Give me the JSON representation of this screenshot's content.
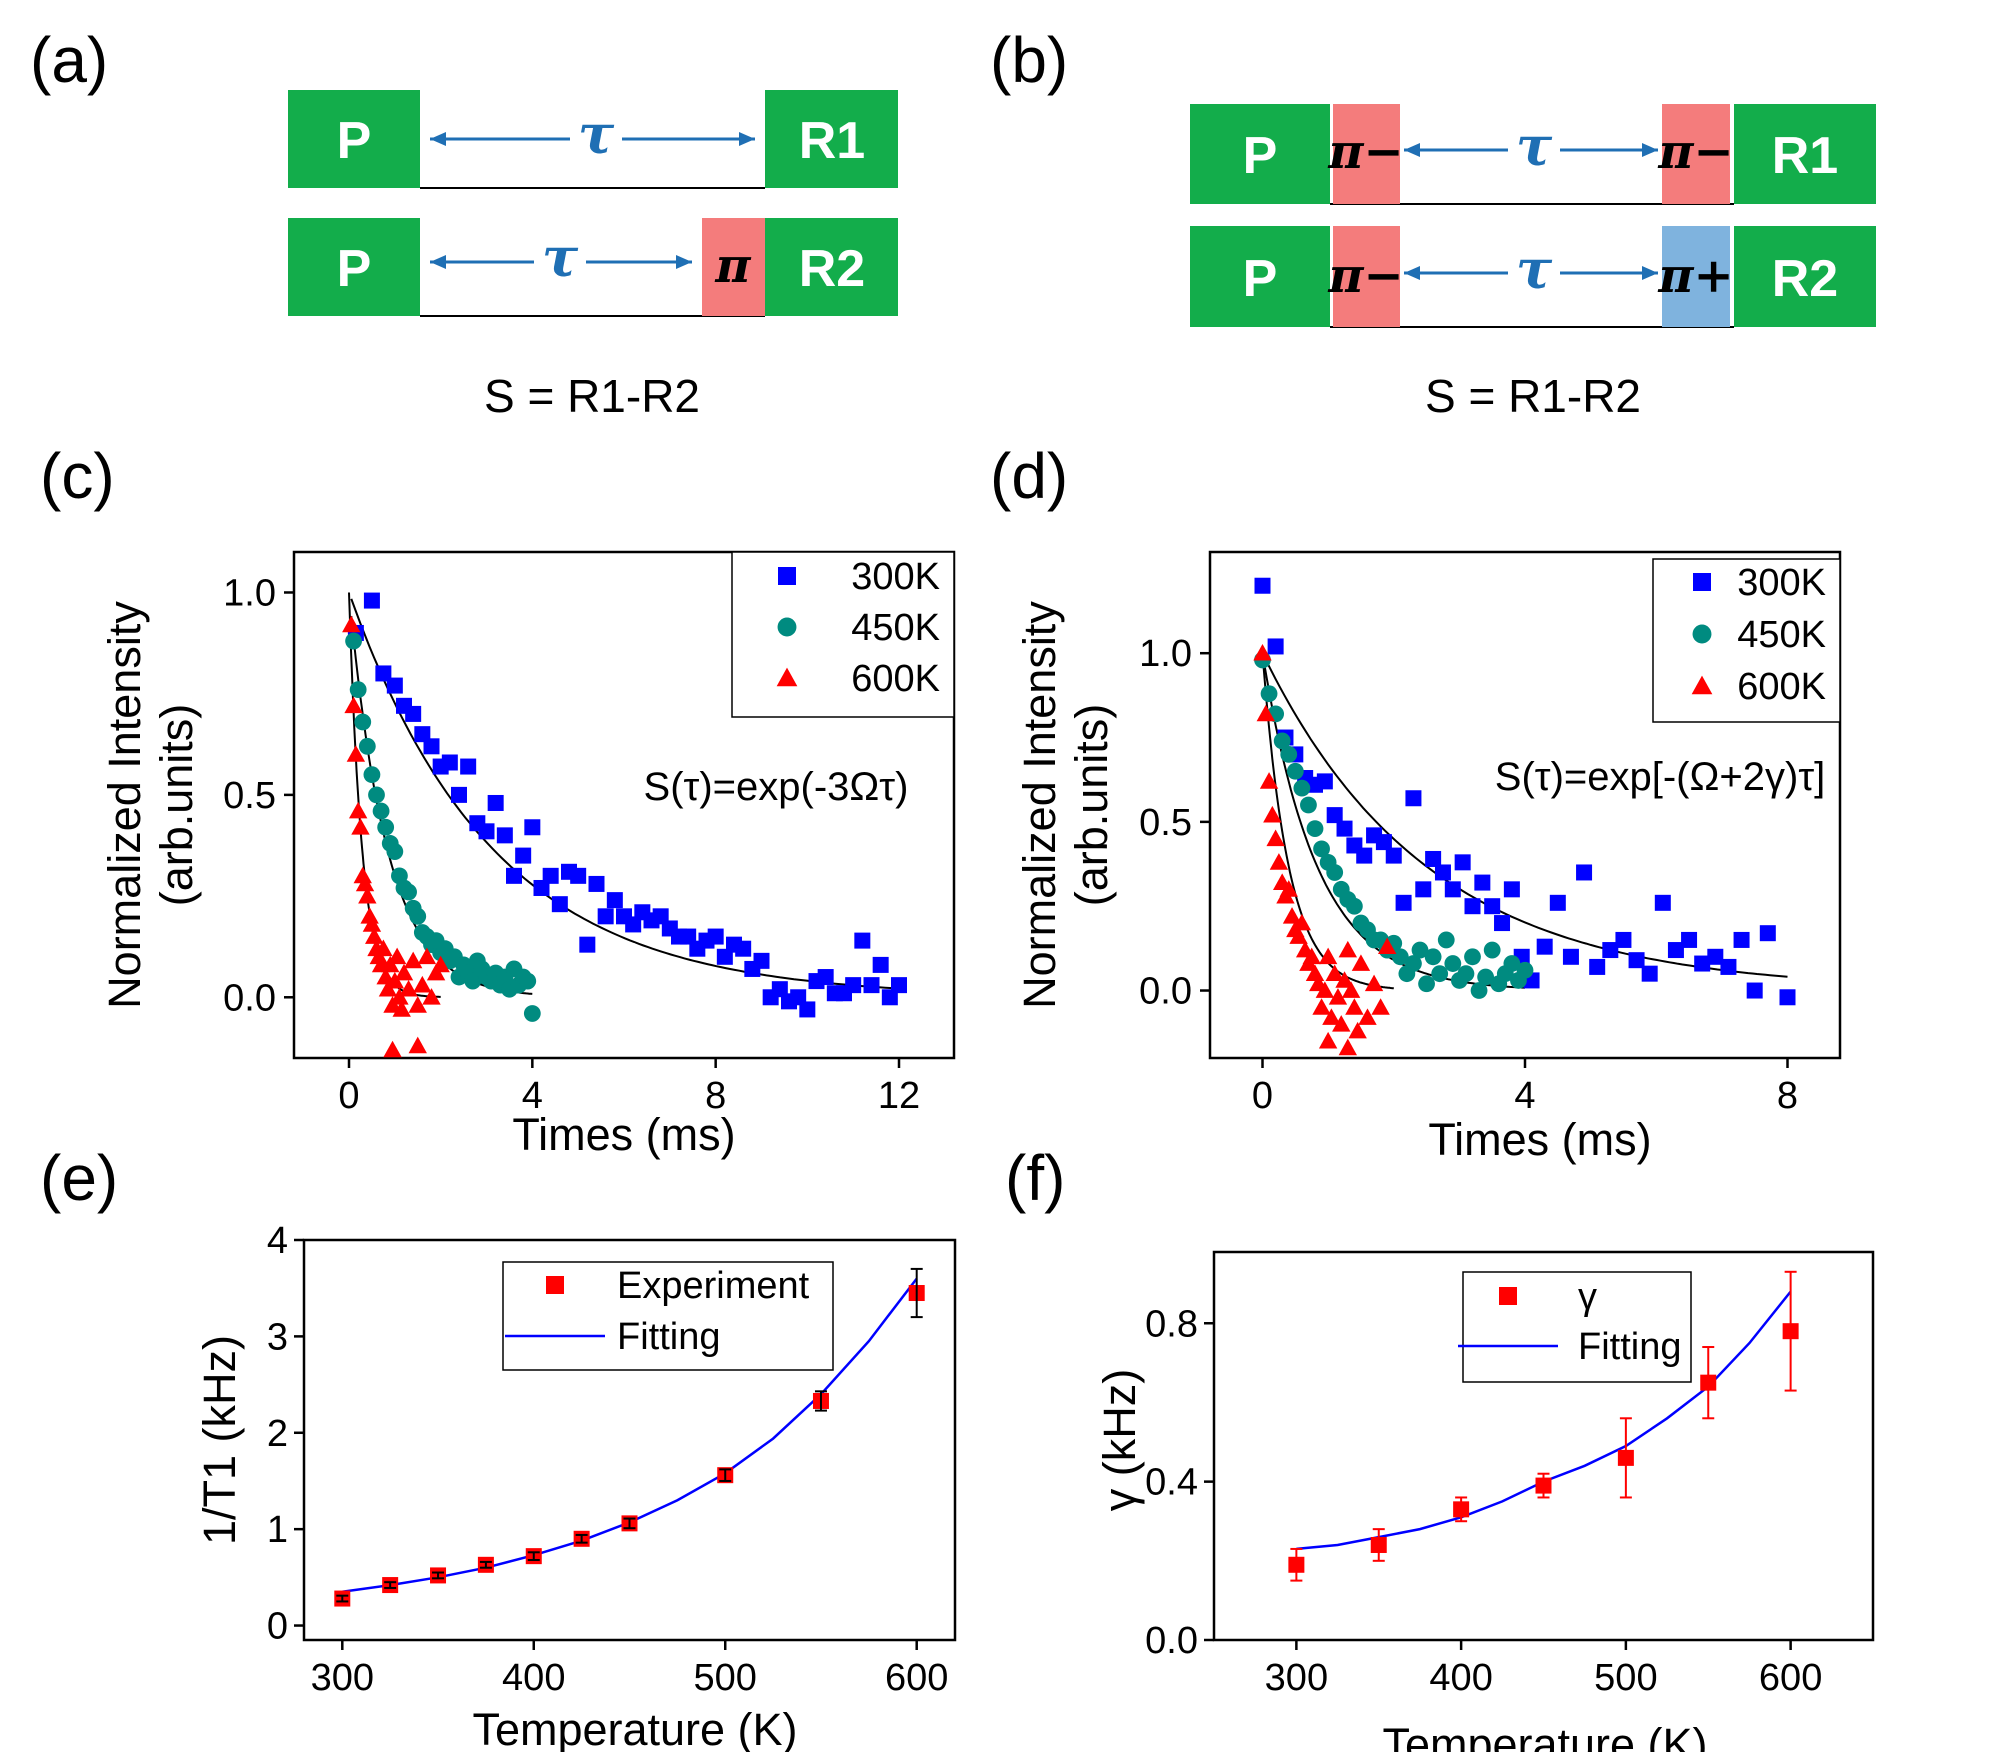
{
  "figure": {
    "panels": {
      "a": {
        "label": "(a)",
        "formula": "S = R1-R2"
      },
      "b": {
        "label": "(b)",
        "formula": "S = R1-R2"
      },
      "c": {
        "label": "(c)"
      },
      "d": {
        "label": "(d)"
      },
      "e": {
        "label": "(e)"
      },
      "f": {
        "label": "(f)"
      }
    },
    "sequences": {
      "a": {
        "row1": {
          "pump": "P",
          "interval": "τ",
          "readout": "R1"
        },
        "row2": {
          "pump": "P",
          "interval": "τ",
          "pulse": "π",
          "readout": "R2"
        }
      },
      "b": {
        "row1": {
          "pump": "P",
          "pulse1": "π−",
          "interval": "τ",
          "pulse2": "π−",
          "readout": "R1"
        },
        "row2": {
          "pump": "P",
          "pulse1": "π−",
          "interval": "τ",
          "pulse2": "π+",
          "readout": "R2"
        }
      }
    },
    "colors": {
      "green": "#13ad4b",
      "pink": "#f47c7c",
      "light_blue": "#7fb3de",
      "arrow_blue": "#1f6fb4",
      "series_blue": "#0000ff",
      "series_teal": "#008b80",
      "series_red": "#ff0000",
      "fit_line": "#0000ff"
    }
  },
  "chart_data": [
    {
      "id": "c",
      "type": "scatter",
      "xlabel": "Times (ms)",
      "ylabel": "Normalized Intensity (arb.units)",
      "xlim": [
        -1.2,
        13.2
      ],
      "ylim": [
        -0.15,
        1.1
      ],
      "xticks": [
        "0",
        "4",
        "8",
        "12"
      ],
      "yticks": [
        "0.0",
        "0.5",
        "1.0"
      ],
      "annotation": "S(τ)=exp(-3Ωτ)",
      "legend": [
        "300K",
        "450K",
        "600K"
      ],
      "series": [
        {
          "name": "300K",
          "marker": "square",
          "color": "#0000ff",
          "x": [
            0.15,
            0.5,
            0.75,
            1.0,
            1.2,
            1.4,
            1.6,
            1.8,
            2.0,
            2.2,
            2.4,
            2.6,
            2.8,
            3.0,
            3.2,
            3.4,
            3.6,
            3.8,
            4.0,
            4.2,
            4.4,
            4.6,
            4.8,
            5.0,
            5.2,
            5.4,
            5.6,
            5.8,
            6.0,
            6.2,
            6.4,
            6.6,
            6.8,
            7.0,
            7.2,
            7.4,
            7.6,
            7.8,
            8.0,
            8.2,
            8.4,
            8.6,
            8.8,
            9.0,
            9.2,
            9.4,
            9.6,
            9.8,
            10.0,
            10.2,
            10.4,
            10.6,
            10.8,
            11.0,
            11.2,
            11.4,
            11.6,
            11.8,
            12.0
          ],
          "y": [
            0.9,
            0.98,
            0.8,
            0.77,
            0.72,
            0.7,
            0.65,
            0.62,
            0.57,
            0.58,
            0.5,
            0.57,
            0.43,
            0.41,
            0.48,
            0.4,
            0.3,
            0.35,
            0.42,
            0.27,
            0.3,
            0.23,
            0.31,
            0.3,
            0.13,
            0.28,
            0.2,
            0.24,
            0.2,
            0.18,
            0.21,
            0.19,
            0.2,
            0.17,
            0.15,
            0.15,
            0.12,
            0.14,
            0.15,
            0.1,
            0.13,
            0.12,
            0.07,
            0.09,
            0.0,
            0.02,
            -0.01,
            0.0,
            -0.03,
            0.04,
            0.05,
            0.01,
            0.01,
            0.03,
            0.14,
            0.03,
            0.08,
            0.0,
            0.03
          ]
        },
        {
          "name": "450K",
          "marker": "circle",
          "color": "#008b80",
          "x": [
            0.1,
            0.2,
            0.3,
            0.4,
            0.5,
            0.6,
            0.7,
            0.8,
            0.9,
            1.0,
            1.1,
            1.2,
            1.3,
            1.4,
            1.5,
            1.6,
            1.7,
            1.8,
            1.9,
            2.0,
            2.1,
            2.2,
            2.3,
            2.4,
            2.5,
            2.6,
            2.7,
            2.8,
            2.9,
            3.0,
            3.1,
            3.2,
            3.3,
            3.4,
            3.5,
            3.6,
            3.7,
            3.8,
            3.9,
            4.0
          ],
          "y": [
            0.88,
            0.76,
            0.68,
            0.62,
            0.55,
            0.5,
            0.46,
            0.42,
            0.38,
            0.36,
            0.3,
            0.27,
            0.26,
            0.22,
            0.2,
            0.16,
            0.15,
            0.13,
            0.14,
            0.11,
            0.12,
            0.09,
            0.1,
            0.05,
            0.08,
            0.06,
            0.04,
            0.09,
            0.07,
            0.05,
            0.04,
            0.06,
            0.03,
            0.05,
            0.02,
            0.07,
            0.03,
            0.05,
            0.04,
            -0.04
          ]
        },
        {
          "name": "600K",
          "marker": "triangle",
          "color": "#ff0000",
          "x": [
            0.05,
            0.1,
            0.15,
            0.2,
            0.25,
            0.3,
            0.35,
            0.4,
            0.45,
            0.5,
            0.55,
            0.6,
            0.65,
            0.7,
            0.75,
            0.8,
            0.85,
            0.9,
            0.95,
            1.0,
            1.05,
            1.1,
            1.15,
            1.2,
            1.3,
            1.4,
            1.5,
            1.6,
            1.7,
            1.8,
            1.9,
            2.0,
            0.95,
            1.5
          ],
          "y": [
            0.92,
            0.72,
            0.6,
            0.46,
            0.42,
            0.3,
            0.28,
            0.25,
            0.2,
            0.18,
            0.15,
            0.12,
            0.1,
            0.08,
            0.12,
            0.05,
            0.02,
            0.08,
            -0.02,
            0.04,
            0.1,
            0.0,
            -0.03,
            0.06,
            0.02,
            0.09,
            -0.02,
            0.03,
            0.1,
            0.0,
            0.06,
            0.08,
            -0.13,
            -0.12
          ]
        }
      ],
      "fits": [
        {
          "name": "300K fit",
          "amplitude": 1.0,
          "rate": 0.32,
          "x_range": [
            0.05,
            12.0
          ]
        },
        {
          "name": "450K fit",
          "amplitude": 1.0,
          "rate": 1.2,
          "x_range": [
            0.05,
            4.0
          ]
        },
        {
          "name": "600K fit",
          "amplitude": 1.0,
          "rate": 3.5,
          "x_range": [
            0.0,
            2.0
          ]
        }
      ]
    },
    {
      "id": "d",
      "type": "scatter",
      "xlabel": "Times (ms)",
      "ylabel": "Normalized Intensity (arb.units)",
      "xlim": [
        -0.8,
        8.8
      ],
      "ylim": [
        -0.2,
        1.3
      ],
      "xticks": [
        "0",
        "4",
        "8"
      ],
      "yticks": [
        "0.0",
        "0.5",
        "1.0"
      ],
      "annotation": "S(τ)=exp[-(Ω+2γ)τ]",
      "legend": [
        "300K",
        "450K",
        "600K"
      ],
      "series": [
        {
          "name": "300K",
          "marker": "square",
          "color": "#0000ff",
          "x": [
            0.0,
            0.2,
            0.35,
            0.5,
            0.65,
            0.8,
            0.95,
            1.1,
            1.25,
            1.4,
            1.55,
            1.7,
            1.85,
            2.0,
            2.15,
            2.3,
            2.45,
            2.6,
            2.75,
            2.9,
            3.05,
            3.2,
            3.35,
            3.5,
            3.65,
            3.8,
            3.95,
            4.1,
            4.3,
            4.5,
            4.7,
            4.9,
            5.1,
            5.3,
            5.5,
            5.7,
            5.9,
            6.1,
            6.3,
            6.5,
            6.7,
            6.9,
            7.1,
            7.3,
            7.5,
            7.7,
            8.0
          ],
          "y": [
            1.2,
            1.02,
            0.75,
            0.7,
            0.63,
            0.61,
            0.62,
            0.52,
            0.48,
            0.43,
            0.4,
            0.46,
            0.44,
            0.4,
            0.26,
            0.57,
            0.3,
            0.39,
            0.35,
            0.3,
            0.38,
            0.25,
            0.32,
            0.25,
            0.2,
            0.3,
            0.1,
            0.03,
            0.13,
            0.26,
            0.1,
            0.35,
            0.07,
            0.12,
            0.15,
            0.09,
            0.05,
            0.26,
            0.12,
            0.15,
            0.08,
            0.1,
            0.07,
            0.15,
            0.0,
            0.17,
            -0.02
          ]
        },
        {
          "name": "450K",
          "marker": "circle",
          "color": "#008b80",
          "x": [
            0.0,
            0.1,
            0.2,
            0.3,
            0.4,
            0.5,
            0.6,
            0.7,
            0.8,
            0.9,
            1.0,
            1.1,
            1.2,
            1.3,
            1.4,
            1.5,
            1.6,
            1.7,
            1.8,
            1.9,
            2.0,
            2.1,
            2.2,
            2.3,
            2.4,
            2.5,
            2.6,
            2.7,
            2.8,
            2.9,
            3.0,
            3.1,
            3.2,
            3.3,
            3.4,
            3.5,
            3.6,
            3.7,
            3.8,
            3.9,
            4.0
          ],
          "y": [
            0.98,
            0.88,
            0.82,
            0.74,
            0.7,
            0.65,
            0.6,
            0.55,
            0.48,
            0.42,
            0.38,
            0.35,
            0.3,
            0.27,
            0.25,
            0.2,
            0.18,
            0.15,
            0.15,
            0.12,
            0.14,
            0.1,
            0.05,
            0.08,
            0.12,
            0.02,
            0.1,
            0.05,
            0.15,
            0.08,
            0.03,
            0.05,
            0.1,
            0.0,
            0.04,
            0.12,
            0.02,
            0.05,
            0.08,
            0.03,
            0.06
          ]
        },
        {
          "name": "600K",
          "marker": "triangle",
          "color": "#ff0000",
          "x": [
            0.0,
            0.05,
            0.1,
            0.15,
            0.2,
            0.25,
            0.3,
            0.35,
            0.4,
            0.45,
            0.5,
            0.55,
            0.6,
            0.65,
            0.7,
            0.75,
            0.8,
            0.85,
            0.9,
            0.95,
            1.0,
            1.05,
            1.1,
            1.15,
            1.2,
            1.25,
            1.3,
            1.35,
            1.4,
            1.45,
            1.5,
            1.6,
            1.7,
            1.8,
            1.9,
            1.0,
            1.3
          ],
          "y": [
            1.0,
            0.82,
            0.62,
            0.52,
            0.45,
            0.38,
            0.32,
            0.28,
            0.3,
            0.22,
            0.18,
            0.16,
            0.2,
            0.12,
            0.08,
            0.1,
            0.05,
            0.02,
            -0.05,
            0.0,
            0.1,
            -0.08,
            0.05,
            -0.02,
            -0.1,
            0.03,
            0.12,
            0.0,
            -0.05,
            -0.12,
            0.08,
            -0.08,
            0.02,
            -0.05,
            0.13,
            -0.15,
            -0.17
          ]
        }
      ],
      "fits": [
        {
          "name": "300K fit",
          "amplitude": 1.0,
          "rate": 0.4,
          "x_range": [
            0.0,
            8.0
          ]
        },
        {
          "name": "450K fit",
          "amplitude": 1.0,
          "rate": 1.2,
          "x_range": [
            0.0,
            4.0
          ]
        },
        {
          "name": "600K fit",
          "amplitude": 1.0,
          "rate": 2.5,
          "x_range": [
            0.0,
            2.0
          ]
        }
      ]
    },
    {
      "id": "e",
      "type": "scatter",
      "xlabel": "Temperature (K)",
      "ylabel": "1/T1 (kHz)",
      "xlim": [
        280,
        620
      ],
      "ylim": [
        -0.15,
        4.0
      ],
      "xticks": [
        "300",
        "400",
        "500",
        "600"
      ],
      "yticks": [
        "0",
        "1",
        "2",
        "3",
        "4"
      ],
      "legend": [
        "Experiment",
        "Fitting"
      ],
      "series": [
        {
          "name": "Experiment",
          "marker": "square",
          "color": "#ff0000",
          "x": [
            300,
            325,
            350,
            375,
            400,
            425,
            450,
            500,
            550,
            600
          ],
          "y": [
            0.28,
            0.42,
            0.52,
            0.63,
            0.72,
            0.9,
            1.06,
            1.56,
            2.33,
            3.45
          ],
          "err": [
            0.03,
            0.03,
            0.03,
            0.03,
            0.04,
            0.04,
            0.05,
            0.06,
            0.1,
            0.25
          ]
        }
      ],
      "fit_line": {
        "name": "Fitting",
        "color": "#0000ff",
        "x": [
          300,
          325,
          350,
          375,
          400,
          425,
          450,
          475,
          500,
          525,
          550,
          575,
          600
        ],
        "y": [
          0.35,
          0.42,
          0.5,
          0.6,
          0.73,
          0.88,
          1.07,
          1.3,
          1.58,
          1.94,
          2.4,
          2.95,
          3.6
        ]
      }
    },
    {
      "id": "f",
      "type": "scatter",
      "xlabel": "Temperature (K)",
      "ylabel": "γ (kHz)",
      "xlim": [
        250,
        650
      ],
      "ylim": [
        0.0,
        0.98
      ],
      "xticks": [
        "300",
        "400",
        "500",
        "600"
      ],
      "yticks": [
        "0.0",
        "0.4",
        "0.8"
      ],
      "legend": [
        "γ",
        "Fitting"
      ],
      "series": [
        {
          "name": "γ",
          "marker": "square",
          "color": "#ff0000",
          "x": [
            300,
            350,
            400,
            450,
            500,
            550,
            600
          ],
          "y": [
            0.19,
            0.24,
            0.33,
            0.39,
            0.46,
            0.65,
            0.78
          ],
          "err": [
            0.04,
            0.04,
            0.03,
            0.03,
            0.1,
            0.09,
            0.15
          ]
        }
      ],
      "fit_line": {
        "name": "Fitting",
        "color": "#0000ff",
        "x": [
          300,
          325,
          350,
          375,
          400,
          425,
          450,
          475,
          500,
          525,
          550,
          575,
          600
        ],
        "y": [
          0.23,
          0.24,
          0.26,
          0.28,
          0.31,
          0.35,
          0.4,
          0.44,
          0.49,
          0.56,
          0.64,
          0.75,
          0.88
        ]
      }
    }
  ]
}
